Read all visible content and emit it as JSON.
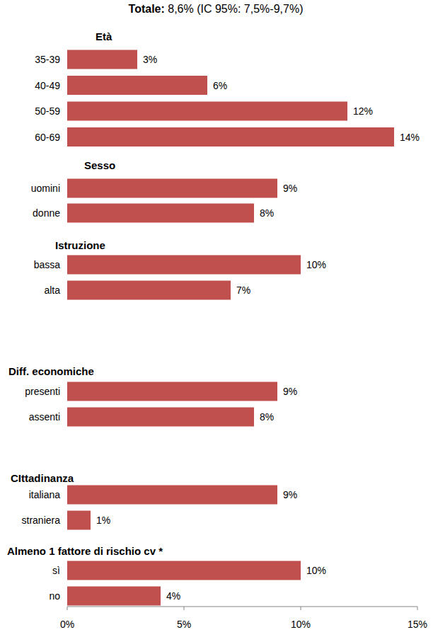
{
  "chart_data": {
    "type": "bar",
    "orientation": "horizontal",
    "title": "Totale:",
    "subtitle": "8,6% (IC 95%: 7,5%-9,7%)",
    "color": "#c0504d",
    "data_labels": true,
    "grid": false,
    "xlim": [
      0,
      15
    ],
    "xticks": [
      {
        "value": 0,
        "label": "0%"
      },
      {
        "value": 5,
        "label": "5%"
      },
      {
        "value": 10,
        "label": "10%"
      },
      {
        "value": 15,
        "label": "15%"
      }
    ],
    "groups": [
      {
        "name": "Età",
        "categories": [
          "35-39",
          "40-49",
          "50-59",
          "60-69"
        ],
        "values": [
          3,
          6,
          12,
          14
        ],
        "value_labels": [
          "3%",
          "6%",
          "12%",
          "14%"
        ]
      },
      {
        "name": "Sesso",
        "categories": [
          "uomini",
          "donne"
        ],
        "values": [
          9,
          8
        ],
        "value_labels": [
          "9%",
          "8%"
        ]
      },
      {
        "name": "Istruzione",
        "categories": [
          "bassa",
          "alta"
        ],
        "values": [
          10,
          7
        ],
        "value_labels": [
          "10%",
          "7%"
        ]
      },
      {
        "name": "Diff. economiche",
        "categories": [
          "presenti",
          "assenti"
        ],
        "values": [
          9,
          8
        ],
        "value_labels": [
          "9%",
          "8%"
        ]
      },
      {
        "name": "CIttadinanza",
        "categories": [
          "italiana",
          "straniera"
        ],
        "values": [
          9,
          1
        ],
        "value_labels": [
          "9%",
          "1%"
        ]
      },
      {
        "name": "Almeno 1 fattore di rischio cv *",
        "categories": [
          "sì",
          "no"
        ],
        "values": [
          10,
          4
        ],
        "value_labels": [
          "10%",
          "4%"
        ]
      }
    ]
  }
}
